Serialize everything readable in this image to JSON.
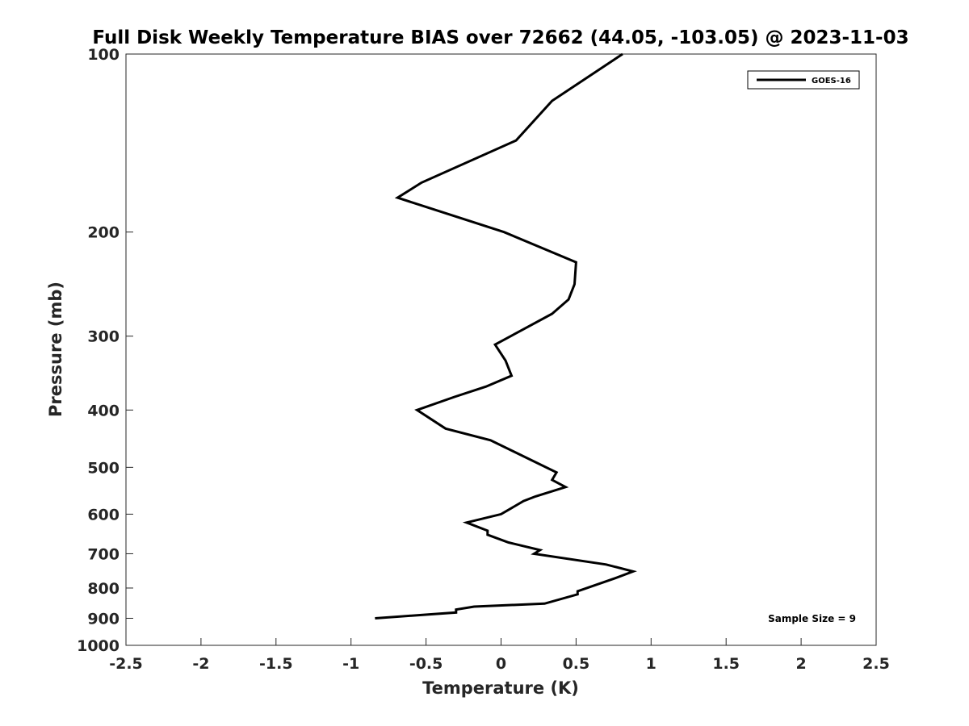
{
  "chart_data": {
    "type": "line",
    "title": "Full Disk Weekly Temperature BIAS over 72662 (44.05, -103.05) @ 2023-11-03",
    "xlabel": "Temperature (K)",
    "ylabel": "Pressure (mb)",
    "xlim": [
      -2.5,
      2.5
    ],
    "ylim": [
      1000,
      100
    ],
    "y_scale": "log",
    "y_reversed": true,
    "x_ticks": [
      -2.5,
      -2,
      -1.5,
      -1,
      -0.5,
      0,
      0.5,
      1,
      1.5,
      2,
      2.5
    ],
    "x_tick_labels": [
      "-2.5",
      "-2",
      "-1.5",
      "-1",
      "-0.5",
      "0",
      "0.5",
      "1",
      "1.5",
      "2",
      "2.5"
    ],
    "y_ticks": [
      100,
      200,
      300,
      400,
      500,
      600,
      700,
      800,
      900,
      1000
    ],
    "y_tick_labels": [
      "100",
      "200",
      "300",
      "400",
      "500",
      "600",
      "700",
      "800",
      "900",
      "1000"
    ],
    "grid": false,
    "legend_position": "top-right",
    "line_color": "#000000",
    "series": [
      {
        "name": "GOES-16",
        "x": [
          -0.84,
          -0.3,
          -0.3,
          -0.18,
          0.29,
          0.51,
          0.51,
          0.76,
          0.88,
          0.7,
          0.22,
          0.26,
          0.05,
          -0.09,
          -0.09,
          -0.23,
          0.0,
          0.15,
          0.23,
          0.43,
          0.34,
          0.37,
          -0.07,
          -0.37,
          -0.56,
          -0.31,
          -0.1,
          0.07,
          0.03,
          -0.04,
          0.34,
          0.45,
          0.49,
          0.5,
          0.02,
          -0.69,
          -0.53,
          0.1,
          0.34,
          0.81
        ],
        "y": [
          900,
          880,
          870,
          860,
          850,
          820,
          810,
          770,
          750,
          730,
          700,
          690,
          670,
          650,
          640,
          620,
          600,
          570,
          560,
          540,
          525,
          510,
          450,
          430,
          400,
          380,
          365,
          350,
          330,
          310,
          275,
          260,
          245,
          225,
          200,
          175,
          165,
          140,
          120,
          100
        ]
      }
    ],
    "annotations": [
      "Sample Size = 9"
    ]
  }
}
